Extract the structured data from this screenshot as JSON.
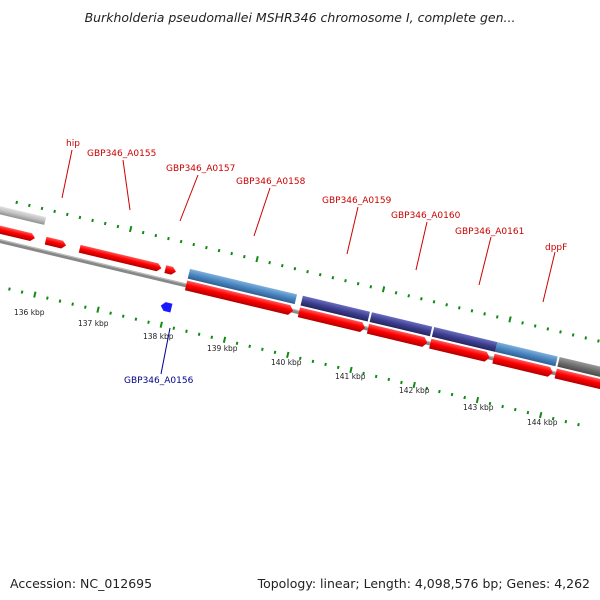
{
  "header": {
    "title": "Burkholderia pseudomallei MSHR346 chromosome I, complete gen..."
  },
  "footer": {
    "accession": "Accession: NC_012695",
    "summary": "Topology: linear; Length: 4,098,576 bp; Genes: 4,262"
  },
  "colors": {
    "cds": "#ff0000",
    "gene": "#4a86c0",
    "gene_alt": "#3d3f8f",
    "other": "#bfbfbf",
    "backbone": "#888888",
    "tick": "#138a13",
    "label_top": "#cc0000",
    "label_bottom": "#00008b"
  },
  "scale": {
    "ticks": [
      {
        "label": "136 kbp"
      },
      {
        "label": "137 kbp"
      },
      {
        "label": "138 kbp"
      },
      {
        "label": "139 kbp"
      },
      {
        "label": "140 kbp"
      },
      {
        "label": "141 kbp"
      },
      {
        "label": "142 kbp"
      },
      {
        "label": "143 kbp"
      },
      {
        "label": "144 kbp"
      }
    ]
  },
  "genes": {
    "top": [
      "hip",
      "GBP346_A0155",
      "GBP346_A0157",
      "GBP346_A0158",
      "GBP346_A0159",
      "GBP346_A0160",
      "GBP346_A0161",
      "dppF"
    ],
    "bottom": [
      "GBP346_A0156"
    ]
  }
}
